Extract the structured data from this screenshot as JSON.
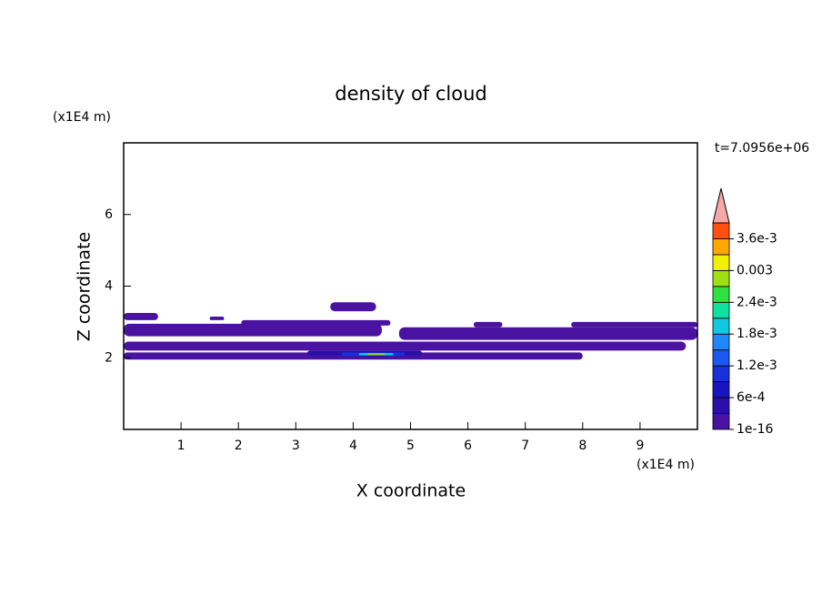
{
  "chart_data": {
    "type": "contour",
    "title": "density of cloud",
    "x_label": "X coordinate",
    "y_label": "Z coordinate",
    "x_unit": "(x1E4 m)",
    "y_unit": "(x1E4 m)",
    "time_label": "t=7.0956e+06",
    "xlim": [
      0,
      10
    ],
    "ylim": [
      0,
      8
    ],
    "xticks": [
      1,
      2,
      3,
      4,
      5,
      6,
      7,
      8,
      9
    ],
    "yticks": [
      2,
      4,
      6
    ],
    "colorbar": {
      "lim": [
        0,
        0.0039
      ],
      "bands": [
        "#4a12a0",
        "#2a10a8",
        "#1a14c0",
        "#1830d8",
        "#1c58ee",
        "#1e88f8",
        "#10c8e0",
        "#10e0a0",
        "#30e040",
        "#a0e010",
        "#f0f000",
        "#ffa800",
        "#ff5010"
      ],
      "overflow_color": "#f4a8a8",
      "ticks": [
        1e-16,
        {
          "value": 0.0006,
          "label": "6e-4"
        },
        {
          "value": 0.0012,
          "label": "1.2e-3"
        },
        {
          "value": 0.0018,
          "label": "1.8e-3"
        },
        {
          "value": 0.0024,
          "label": "2.4e-3"
        },
        0.003,
        {
          "value": 0.0036,
          "label": "3.6e-3"
        }
      ]
    },
    "regions": [
      {
        "x": [
          0,
          0.6
        ],
        "z": [
          3.05,
          3.25
        ],
        "level": 1e-16
      },
      {
        "x": [
          1.5,
          1.75
        ],
        "z": [
          3.05,
          3.15
        ],
        "level": 1e-16
      },
      {
        "x": [
          2.05,
          4.65
        ],
        "z": [
          2.9,
          3.05
        ],
        "level": 1e-16
      },
      {
        "x": [
          3.6,
          4.4
        ],
        "z": [
          3.3,
          3.55
        ],
        "level": 1e-16
      },
      {
        "x": [
          0,
          4.5
        ],
        "z": [
          2.6,
          2.95
        ],
        "level": 1e-16
      },
      {
        "x": [
          4.8,
          10
        ],
        "z": [
          2.5,
          2.85
        ],
        "level": 1e-16
      },
      {
        "x": [
          6.1,
          6.6
        ],
        "z": [
          2.85,
          3.0
        ],
        "level": 1e-16
      },
      {
        "x": [
          7.8,
          10
        ],
        "z": [
          2.85,
          3.0
        ],
        "level": 1e-16
      },
      {
        "x": [
          0,
          9.8
        ],
        "z": [
          2.2,
          2.45
        ],
        "level": 1e-16
      },
      {
        "x": [
          0,
          8
        ],
        "z": [
          1.95,
          2.15
        ],
        "level": 1e-16
      },
      {
        "x": [
          0,
          2.4
        ],
        "z": [
          2.65,
          2.8
        ],
        "level": 0.0003
      },
      {
        "x": [
          6.0,
          9.5
        ],
        "z": [
          2.55,
          2.7
        ],
        "level": 0.0003
      },
      {
        "x": [
          3.2,
          5.2
        ],
        "z": [
          2.05,
          2.2
        ],
        "level": 0.0006
      },
      {
        "x": [
          3.8,
          4.9
        ],
        "z": [
          2.05,
          2.15
        ],
        "level": 0.0012
      },
      {
        "x": [
          4.1,
          4.7
        ],
        "z": [
          2.07,
          2.13
        ],
        "level": 0.0018
      },
      {
        "x": [
          4.25,
          4.55
        ],
        "z": [
          2.08,
          2.12
        ],
        "level": 0.0027
      }
    ]
  }
}
